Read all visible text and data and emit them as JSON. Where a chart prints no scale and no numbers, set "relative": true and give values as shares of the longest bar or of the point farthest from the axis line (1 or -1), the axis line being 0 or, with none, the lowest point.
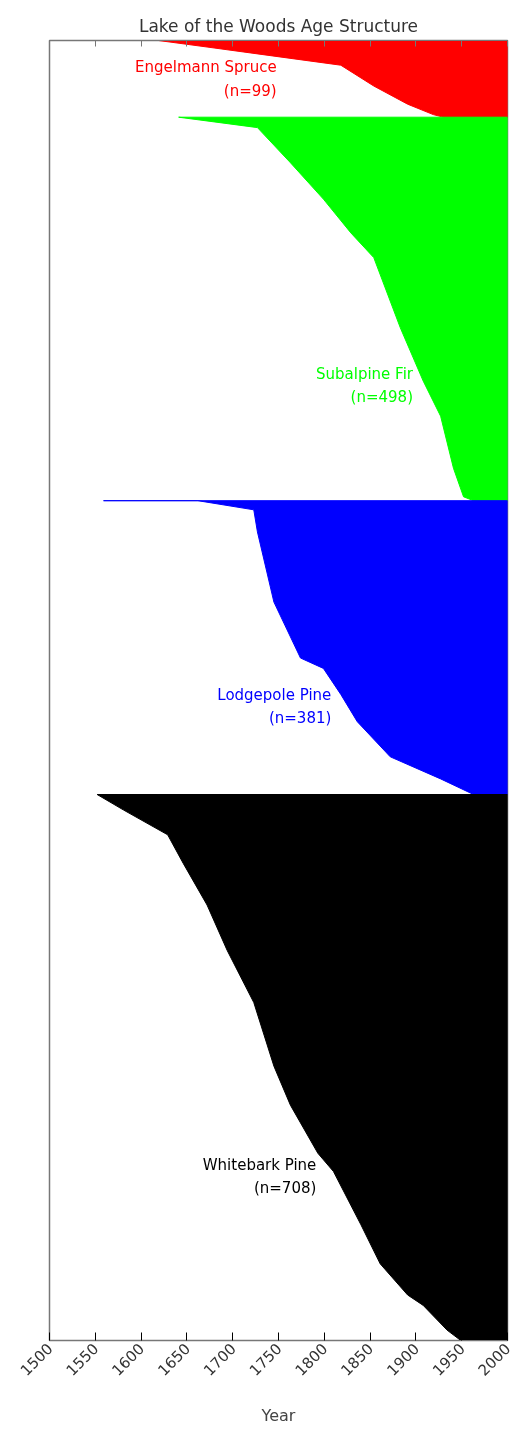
{
  "chart_data": {
    "type": "area",
    "title": "Lake of the Woods Age Structure",
    "xlabel": "Year",
    "relative": true,
    "xlim": [
      1500,
      2000
    ],
    "xticks": [
      1500,
      1550,
      1600,
      1650,
      1700,
      1750,
      1800,
      1850,
      1900,
      1950,
      2000
    ],
    "grid": false,
    "series": [
      {
        "name": "Engelmann Spruce (n=99)",
        "color": "#ff0000",
        "x": [
          1619,
          1672,
          1818,
          1854,
          1891,
          1919,
          1930,
          2000,
          2000
        ],
        "values": [
          1.0,
          0.995,
          0.981,
          0.965,
          0.951,
          0.943,
          0.941,
          0.941,
          1.0
        ]
      },
      {
        "name": "Subalpine Fir (n=498)",
        "color": "#00ff00",
        "x": [
          1641,
          1727,
          1763,
          1799,
          1829,
          1854,
          1883,
          1908,
          1927,
          1941,
          1952,
          1963,
          2000,
          2000
        ],
        "values": [
          0.941,
          0.933,
          0.906,
          0.878,
          0.852,
          0.833,
          0.779,
          0.738,
          0.711,
          0.671,
          0.649,
          0.646,
          0.646,
          0.941
        ]
      },
      {
        "name": "Lodgepole Pine (n=381)",
        "color": "#0000ff",
        "x": [
          1559,
          1662,
          1723,
          1727,
          1745,
          1774,
          1799,
          1818,
          1836,
          1872,
          1927,
          1963,
          2000,
          2000
        ],
        "values": [
          0.646,
          0.646,
          0.639,
          0.622,
          0.568,
          0.525,
          0.517,
          0.497,
          0.476,
          0.449,
          0.432,
          0.42,
          0.42,
          0.646
        ]
      },
      {
        "name": "Whitebark Pine (n=708)",
        "color": "#000000",
        "x": [
          1552,
          1581,
          1629,
          1646,
          1672,
          1694,
          1723,
          1745,
          1763,
          1793,
          1810,
          1840,
          1861,
          1891,
          1908,
          1934,
          1949,
          2000,
          2000
        ],
        "values": [
          0.42,
          0.408,
          0.389,
          0.367,
          0.335,
          0.3,
          0.26,
          0.211,
          0.181,
          0.144,
          0.13,
          0.089,
          0.059,
          0.035,
          0.027,
          0.008,
          0.0,
          0.0,
          0.42
        ]
      }
    ]
  }
}
